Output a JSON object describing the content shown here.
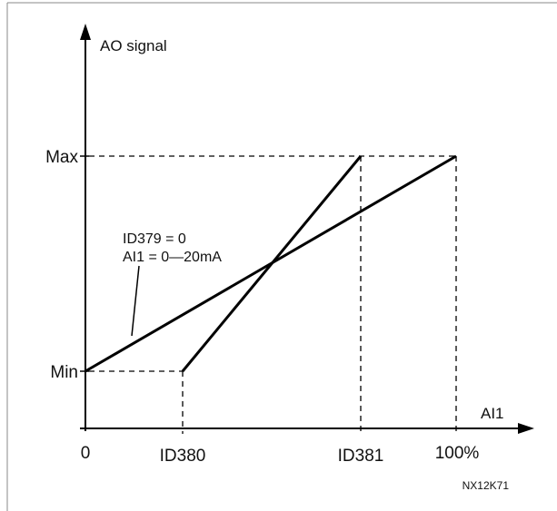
{
  "diagram": {
    "y_axis_label": "AO signal",
    "x_axis_label": "AI1",
    "y_ticks": {
      "max": "Max",
      "min": "Min"
    },
    "x_ticks": {
      "zero": "0",
      "id380": "ID380",
      "id381": "ID381",
      "full": "100%"
    },
    "annotation": {
      "line1": "ID379 = 0",
      "line2": "AI1 = 0—20mA"
    },
    "figure_code": "NX12K71"
  }
}
